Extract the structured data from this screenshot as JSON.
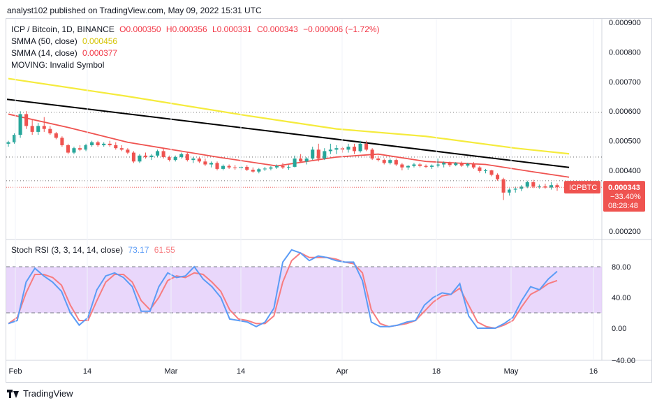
{
  "header": {
    "publisher": "analyst102 published on TradingView.com, May 09, 2022 15:31 UTC"
  },
  "legend": {
    "symbol": "ICP / Bitcoin, 1D, BINANCE",
    "open": "O0.000350",
    "high": "H0.000356",
    "low": "L0.000331",
    "close": "C0.000343",
    "change": "−0.000006 (−1.72%)",
    "smma50_label": "SMMA (50, close)",
    "smma50_value": "0.000456",
    "smma14_label": "SMMA (14, close)",
    "smma14_value": "0.000377",
    "moving": "MOVING: Invalid Symbol"
  },
  "stoch_legend": {
    "label": "Stoch RSI (3, 3, 14, 14, close)",
    "k_value": "73.17",
    "d_value": "61.55"
  },
  "price_tag": {
    "symbol": "ICPBTC",
    "price": "0.000343",
    "change": "−33.40%",
    "countdown": "08:28:48"
  },
  "footer": {
    "brand": "TradingView"
  },
  "colors": {
    "up": "#26a69a",
    "down": "#ef5350",
    "smma50": "#f5eb3c",
    "smma14": "#ef5350",
    "trendline": "#000000",
    "stoch_k": "#5b9cf6",
    "stoch_d": "#f77c80",
    "stoch_band": "#e1c9f9"
  },
  "chart_data": [
    {
      "type": "candlestick",
      "title": "ICP / Bitcoin, 1D, BINANCE",
      "x_ticks": [
        "Feb",
        "14",
        "Mar",
        "14",
        "Apr",
        "18",
        "May",
        "16"
      ],
      "y_ticks": [
        "0.000900",
        "0.000800",
        "0.000700",
        "0.000600",
        "0.000500",
        "0.000400",
        "0.000200"
      ],
      "ylim": [
        0.00017,
        0.00092
      ],
      "candles": [
        [
          0.00049,
          0.0005,
          0.00048,
          0.000495
        ],
        [
          0.000495,
          0.000525,
          0.00049,
          0.00052
        ],
        [
          0.00052,
          0.0006,
          0.00051,
          0.00059
        ],
        [
          0.00059,
          0.0006,
          0.00054,
          0.00055
        ],
        [
          0.00055,
          0.00057,
          0.00052,
          0.00053
        ],
        [
          0.00053,
          0.00056,
          0.00052,
          0.00055
        ],
        [
          0.00055,
          0.00058,
          0.00053,
          0.00054
        ],
        [
          0.00054,
          0.00055,
          0.00052,
          0.000525
        ],
        [
          0.000525,
          0.00053,
          0.000505,
          0.00051
        ],
        [
          0.00051,
          0.000515,
          0.00048,
          0.000485
        ],
        [
          0.000485,
          0.00049,
          0.000455,
          0.00046
        ],
        [
          0.00046,
          0.00048,
          0.000455,
          0.000475
        ],
        [
          0.000475,
          0.000485,
          0.000465,
          0.00047
        ],
        [
          0.00047,
          0.00049,
          0.000465,
          0.000485
        ],
        [
          0.000485,
          0.0005,
          0.00048,
          0.000495
        ],
        [
          0.000495,
          0.0005,
          0.00048,
          0.000485
        ],
        [
          0.000485,
          0.000495,
          0.00048,
          0.00049
        ],
        [
          0.00049,
          0.0005,
          0.00048,
          0.000485
        ],
        [
          0.000485,
          0.000495,
          0.00047,
          0.000475
        ],
        [
          0.000475,
          0.000485,
          0.000465,
          0.00047
        ],
        [
          0.00047,
          0.000475,
          0.000455,
          0.00046
        ],
        [
          0.00046,
          0.000465,
          0.000425,
          0.00043
        ],
        [
          0.00043,
          0.000455,
          0.000425,
          0.00045
        ],
        [
          0.00045,
          0.00046,
          0.00044,
          0.000445
        ],
        [
          0.000445,
          0.000455,
          0.000435,
          0.00045
        ],
        [
          0.00045,
          0.00047,
          0.000445,
          0.000465
        ],
        [
          0.000465,
          0.000475,
          0.00044,
          0.000445
        ],
        [
          0.000445,
          0.00045,
          0.00043,
          0.000435
        ],
        [
          0.000435,
          0.00045,
          0.00043,
          0.000445
        ],
        [
          0.000445,
          0.00046,
          0.00044,
          0.000455
        ],
        [
          0.000455,
          0.00046,
          0.00043,
          0.000435
        ],
        [
          0.000435,
          0.000445,
          0.000425,
          0.00044
        ],
        [
          0.00044,
          0.000445,
          0.000425,
          0.00043
        ],
        [
          0.00043,
          0.00044,
          0.000415,
          0.00042
        ],
        [
          0.00042,
          0.00043,
          0.00041,
          0.000425
        ],
        [
          0.000425,
          0.00043,
          0.0004,
          0.000405
        ],
        [
          0.000405,
          0.00042,
          0.0004,
          0.000415
        ],
        [
          0.000415,
          0.00042,
          0.000405,
          0.00041
        ],
        [
          0.00041,
          0.000418,
          0.000402,
          0.000408
        ],
        [
          0.000408,
          0.000415,
          0.0004,
          0.000412
        ],
        [
          0.000412,
          0.000418,
          0.000398,
          0.000402
        ],
        [
          0.000402,
          0.00041,
          0.000392,
          0.000396
        ],
        [
          0.000396,
          0.000408,
          0.00039,
          0.000404
        ],
        [
          0.000404,
          0.000412,
          0.000398,
          0.000406
        ],
        [
          0.000406,
          0.000414,
          0.0004,
          0.00041
        ],
        [
          0.00041,
          0.00042,
          0.000405,
          0.000415
        ],
        [
          0.000415,
          0.000425,
          0.000405,
          0.00041
        ],
        [
          0.00041,
          0.000418,
          0.000402,
          0.000412
        ],
        [
          0.000412,
          0.00045,
          0.00041,
          0.00044
        ],
        [
          0.00044,
          0.000455,
          0.000425,
          0.00043
        ],
        [
          0.00043,
          0.000445,
          0.00042,
          0.00044
        ],
        [
          0.00044,
          0.00048,
          0.000435,
          0.00047
        ],
        [
          0.00047,
          0.00049,
          0.00043,
          0.00044
        ],
        [
          0.00044,
          0.000475,
          0.000435,
          0.000465
        ],
        [
          0.000465,
          0.00049,
          0.000455,
          0.00047
        ],
        [
          0.00047,
          0.000485,
          0.000455,
          0.000475
        ],
        [
          0.000475,
          0.00048,
          0.00046,
          0.00047
        ],
        [
          0.00047,
          0.00049,
          0.00046,
          0.00048
        ],
        [
          0.00048,
          0.00049,
          0.000455,
          0.000465
        ],
        [
          0.000465,
          0.0005,
          0.00046,
          0.00049
        ],
        [
          0.00049,
          0.0005,
          0.000465,
          0.00047
        ],
        [
          0.00047,
          0.000475,
          0.000435,
          0.00044
        ],
        [
          0.00044,
          0.00045,
          0.00043,
          0.000435
        ],
        [
          0.000435,
          0.00044,
          0.00042,
          0.000425
        ],
        [
          0.000425,
          0.00044,
          0.00042,
          0.000435
        ],
        [
          0.000435,
          0.00044,
          0.000415,
          0.00042
        ],
        [
          0.00042,
          0.000425,
          0.0004,
          0.00041
        ],
        [
          0.00041,
          0.000418,
          0.000402,
          0.000415
        ],
        [
          0.000415,
          0.000425,
          0.00041,
          0.00042
        ],
        [
          0.00042,
          0.000425,
          0.00041,
          0.000415
        ],
        [
          0.000415,
          0.00042,
          0.000408,
          0.000412
        ],
        [
          0.000412,
          0.00042,
          0.000405,
          0.000416
        ],
        [
          0.000416,
          0.00044,
          0.00041,
          0.00042
        ],
        [
          0.00042,
          0.00043,
          0.00041,
          0.000425
        ],
        [
          0.000425,
          0.00043,
          0.000412,
          0.000418
        ],
        [
          0.000418,
          0.000428,
          0.000414,
          0.000424
        ],
        [
          0.000424,
          0.00043,
          0.000412,
          0.000416
        ],
        [
          0.000416,
          0.000426,
          0.00041,
          0.000422
        ],
        [
          0.000422,
          0.000428,
          0.000405,
          0.00041
        ],
        [
          0.00041,
          0.000415,
          0.000392,
          0.000398
        ],
        [
          0.000398,
          0.000405,
          0.00039,
          0.0004
        ],
        [
          0.0004,
          0.000402,
          0.00038,
          0.000385
        ],
        [
          0.000385,
          0.00039,
          0.000365,
          0.00037
        ],
        [
          0.00037,
          0.000375,
          0.0003,
          0.000325
        ],
        [
          0.000325,
          0.00034,
          0.000315,
          0.000335
        ],
        [
          0.000335,
          0.000345,
          0.000325,
          0.000338
        ],
        [
          0.000338,
          0.00035,
          0.00033,
          0.000345
        ],
        [
          0.000345,
          0.000365,
          0.00034,
          0.00036
        ],
        [
          0.00036,
          0.000368,
          0.00034,
          0.000345
        ],
        [
          0.000345,
          0.000352,
          0.000338,
          0.000346
        ],
        [
          0.000346,
          0.000355,
          0.000338,
          0.000342
        ],
        [
          0.000342,
          0.00036,
          0.000335,
          0.00035
        ],
        [
          0.00035,
          0.000356,
          0.000331,
          0.000343
        ]
      ],
      "smma50": [
        [
          0,
          0.00071
        ],
        [
          20,
          0.00065
        ],
        [
          40,
          0.000585
        ],
        [
          55,
          0.00054
        ],
        [
          70,
          0.000515
        ],
        [
          85,
          0.000475
        ],
        [
          94,
          0.000456
        ]
      ],
      "smma14": [
        [
          0,
          0.00059
        ],
        [
          10,
          0.000545
        ],
        [
          20,
          0.000495
        ],
        [
          35,
          0.000445
        ],
        [
          45,
          0.000415
        ],
        [
          55,
          0.000445
        ],
        [
          62,
          0.000455
        ],
        [
          70,
          0.00043
        ],
        [
          80,
          0.00042
        ],
        [
          88,
          0.000395
        ],
        [
          94,
          0.000377
        ]
      ],
      "trendline": [
        [
          0,
          0.00064
        ],
        [
          94,
          0.00041
        ]
      ],
      "reference_lines": [
        0.000596,
        0.000445,
        0.000365
      ]
    },
    {
      "type": "line",
      "title": "Stoch RSI (3, 3, 14, 14, close)",
      "y_ticks": [
        "80.00",
        "40.00",
        "0.00",
        "−40.00"
      ],
      "ylim": [
        -42,
        108
      ],
      "bands": [
        20,
        80
      ],
      "k": [
        [
          0,
          6
        ],
        [
          2,
          10
        ],
        [
          4,
          60
        ],
        [
          6,
          78
        ],
        [
          8,
          68
        ],
        [
          10,
          60
        ],
        [
          12,
          48
        ],
        [
          14,
          20
        ],
        [
          16,
          4
        ],
        [
          18,
          14
        ],
        [
          20,
          50
        ],
        [
          22,
          68
        ],
        [
          24,
          72
        ],
        [
          26,
          66
        ],
        [
          28,
          54
        ],
        [
          30,
          22
        ],
        [
          32,
          22
        ],
        [
          34,
          54
        ],
        [
          36,
          72
        ],
        [
          38,
          66
        ],
        [
          40,
          68
        ],
        [
          42,
          80
        ],
        [
          44,
          64
        ],
        [
          46,
          54
        ],
        [
          48,
          40
        ],
        [
          50,
          12
        ],
        [
          52,
          10
        ],
        [
          54,
          8
        ],
        [
          56,
          2
        ],
        [
          58,
          8
        ],
        [
          60,
          26
        ],
        [
          62,
          86
        ],
        [
          64,
          102
        ],
        [
          66,
          98
        ],
        [
          68,
          88
        ],
        [
          70,
          94
        ],
        [
          72,
          92
        ],
        [
          74,
          88
        ],
        [
          76,
          86
        ],
        [
          78,
          86
        ],
        [
          80,
          62
        ],
        [
          82,
          8
        ],
        [
          84,
          2
        ],
        [
          86,
          2
        ],
        [
          88,
          4
        ],
        [
          90,
          8
        ],
        [
          92,
          10
        ],
        [
          94,
          30
        ],
        [
          96,
          40
        ],
        [
          98,
          46
        ],
        [
          100,
          44
        ],
        [
          102,
          58
        ],
        [
          104,
          16
        ],
        [
          106,
          0
        ],
        [
          108,
          0
        ],
        [
          110,
          0
        ],
        [
          112,
          6
        ],
        [
          114,
          14
        ],
        [
          116,
          36
        ],
        [
          118,
          54
        ],
        [
          120,
          50
        ],
        [
          122,
          64
        ],
        [
          124,
          74
        ]
      ],
      "d": [
        [
          0,
          6
        ],
        [
          2,
          14
        ],
        [
          4,
          46
        ],
        [
          6,
          70
        ],
        [
          8,
          70
        ],
        [
          10,
          66
        ],
        [
          12,
          56
        ],
        [
          14,
          30
        ],
        [
          16,
          10
        ],
        [
          18,
          10
        ],
        [
          20,
          36
        ],
        [
          22,
          60
        ],
        [
          24,
          70
        ],
        [
          26,
          70
        ],
        [
          28,
          60
        ],
        [
          30,
          36
        ],
        [
          32,
          24
        ],
        [
          34,
          40
        ],
        [
          36,
          62
        ],
        [
          38,
          68
        ],
        [
          40,
          66
        ],
        [
          42,
          72
        ],
        [
          44,
          70
        ],
        [
          46,
          60
        ],
        [
          48,
          48
        ],
        [
          50,
          24
        ],
        [
          52,
          12
        ],
        [
          54,
          10
        ],
        [
          56,
          6
        ],
        [
          58,
          6
        ],
        [
          60,
          16
        ],
        [
          62,
          60
        ],
        [
          64,
          88
        ],
        [
          66,
          98
        ],
        [
          68,
          92
        ],
        [
          70,
          92
        ],
        [
          72,
          92
        ],
        [
          74,
          90
        ],
        [
          76,
          86
        ],
        [
          78,
          84
        ],
        [
          80,
          72
        ],
        [
          82,
          24
        ],
        [
          84,
          6
        ],
        [
          86,
          2
        ],
        [
          88,
          4
        ],
        [
          90,
          6
        ],
        [
          92,
          10
        ],
        [
          94,
          22
        ],
        [
          96,
          34
        ],
        [
          98,
          42
        ],
        [
          100,
          44
        ],
        [
          102,
          52
        ],
        [
          104,
          30
        ],
        [
          106,
          8
        ],
        [
          108,
          2
        ],
        [
          110,
          0
        ],
        [
          112,
          4
        ],
        [
          114,
          10
        ],
        [
          116,
          28
        ],
        [
          118,
          44
        ],
        [
          120,
          50
        ],
        [
          122,
          58
        ],
        [
          124,
          62
        ]
      ]
    }
  ]
}
